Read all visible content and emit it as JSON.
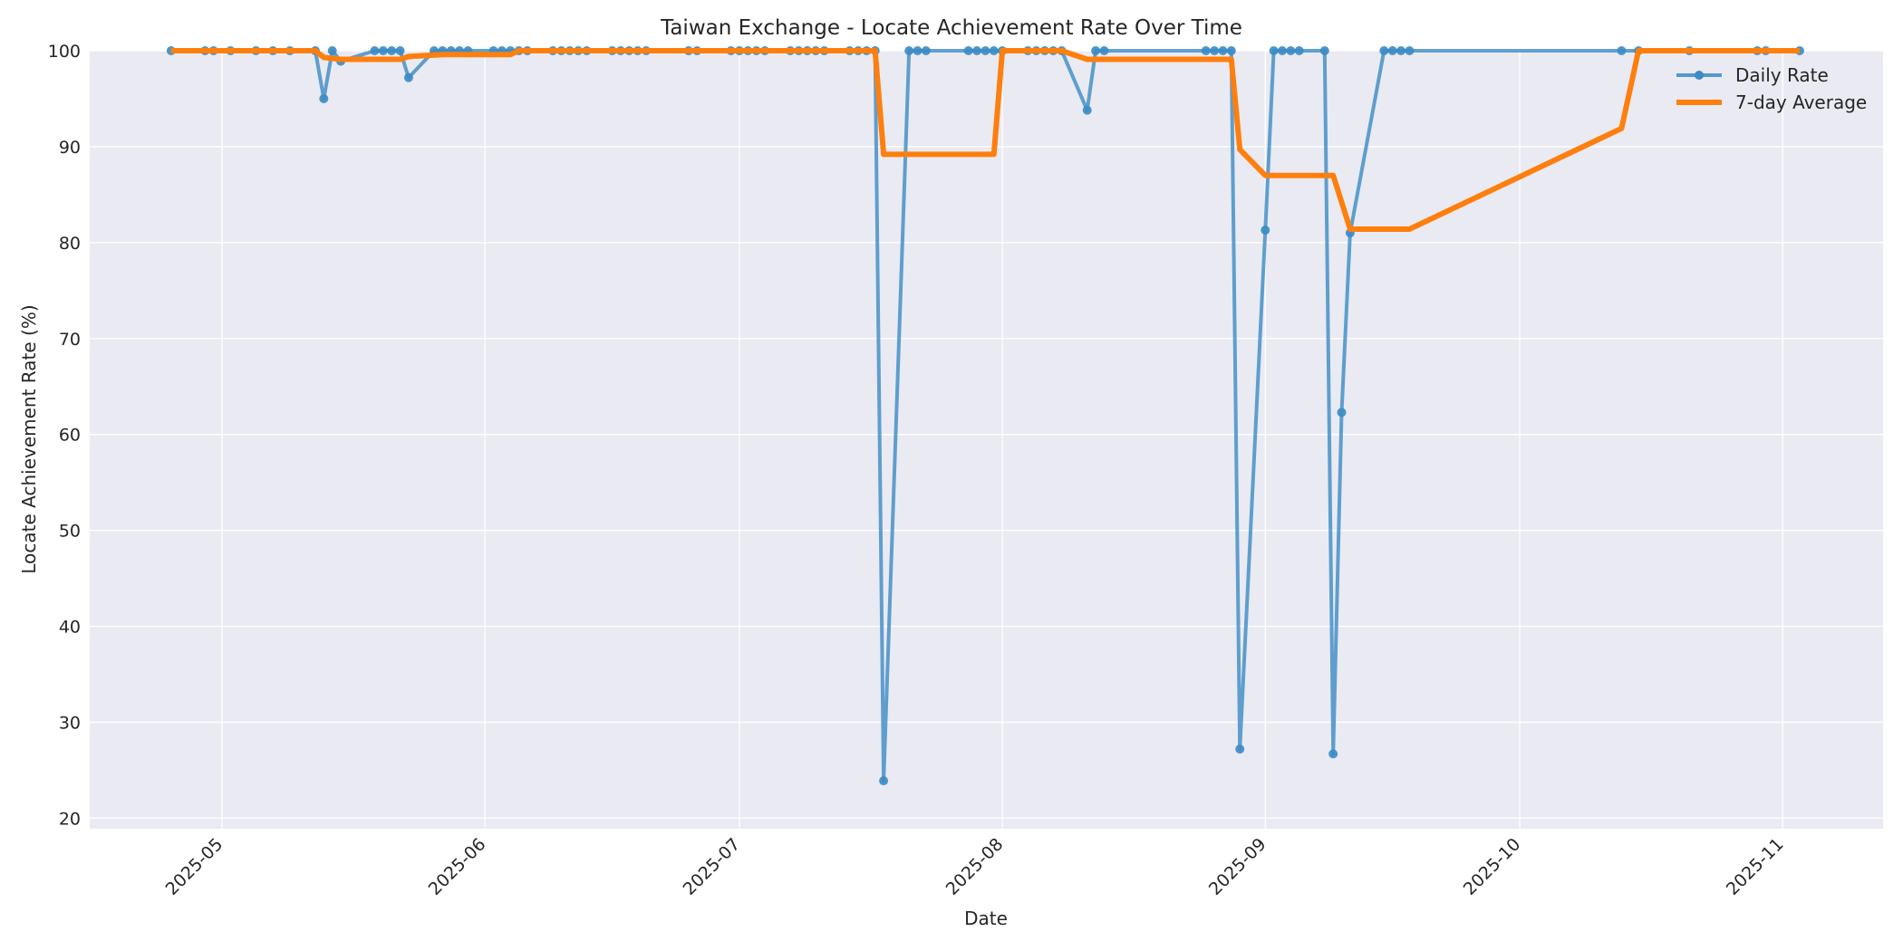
{
  "chart_data": {
    "type": "line",
    "title": "Taiwan Exchange - Locate Achievement Rate Over Time",
    "xlabel": "Date",
    "ylabel": "Locate Achievement Rate (%)",
    "ylim": [
      18.9,
      100
    ],
    "xlim": [
      "2025-04-15",
      "2025-11-12"
    ],
    "yticks": [
      20,
      30,
      40,
      50,
      60,
      70,
      80,
      90,
      100
    ],
    "xticks": [
      "2025-05",
      "2025-06",
      "2025-07",
      "2025-08",
      "2025-09",
      "2025-10",
      "2025-11"
    ],
    "grid": true,
    "legend_position": "upper right",
    "colors": {
      "daily": "#3b8bc4",
      "avg": "#ff7f0e",
      "background": "#eaeaf2",
      "grid": "#ffffff"
    },
    "series": [
      {
        "name": "Daily Rate",
        "style": "line-with-markers",
        "points": [
          [
            "2025-04-25",
            100
          ],
          [
            "2025-04-29",
            100
          ],
          [
            "2025-04-30",
            100
          ],
          [
            "2025-05-02",
            100
          ],
          [
            "2025-05-05",
            100
          ],
          [
            "2025-05-07",
            100
          ],
          [
            "2025-05-09",
            100
          ],
          [
            "2025-05-12",
            100
          ],
          [
            "2025-05-13",
            95.0
          ],
          [
            "2025-05-14",
            100
          ],
          [
            "2025-05-15",
            98.9
          ],
          [
            "2025-05-19",
            100
          ],
          [
            "2025-05-20",
            100
          ],
          [
            "2025-05-21",
            100
          ],
          [
            "2025-05-22",
            100
          ],
          [
            "2025-05-23",
            97.2
          ],
          [
            "2025-05-26",
            100
          ],
          [
            "2025-05-27",
            100
          ],
          [
            "2025-05-28",
            100
          ],
          [
            "2025-05-29",
            100
          ],
          [
            "2025-05-30",
            100
          ],
          [
            "2025-06-02",
            100
          ],
          [
            "2025-06-03",
            100
          ],
          [
            "2025-06-04",
            100
          ],
          [
            "2025-06-05",
            100
          ],
          [
            "2025-06-06",
            100
          ],
          [
            "2025-06-09",
            100
          ],
          [
            "2025-06-10",
            100
          ],
          [
            "2025-06-11",
            100
          ],
          [
            "2025-06-12",
            100
          ],
          [
            "2025-06-13",
            100
          ],
          [
            "2025-06-16",
            100
          ],
          [
            "2025-06-17",
            100
          ],
          [
            "2025-06-18",
            100
          ],
          [
            "2025-06-19",
            100
          ],
          [
            "2025-06-20",
            100
          ],
          [
            "2025-06-25",
            100
          ],
          [
            "2025-06-26",
            100
          ],
          [
            "2025-06-30",
            100
          ],
          [
            "2025-07-01",
            100
          ],
          [
            "2025-07-02",
            100
          ],
          [
            "2025-07-03",
            100
          ],
          [
            "2025-07-04",
            100
          ],
          [
            "2025-07-07",
            100
          ],
          [
            "2025-07-08",
            100
          ],
          [
            "2025-07-09",
            100
          ],
          [
            "2025-07-10",
            100
          ],
          [
            "2025-07-11",
            100
          ],
          [
            "2025-07-14",
            100
          ],
          [
            "2025-07-15",
            100
          ],
          [
            "2025-07-16",
            100
          ],
          [
            "2025-07-17",
            100
          ],
          [
            "2025-07-18",
            23.9
          ],
          [
            "2025-07-21",
            100
          ],
          [
            "2025-07-22",
            100
          ],
          [
            "2025-07-23",
            100
          ],
          [
            "2025-07-28",
            100
          ],
          [
            "2025-07-29",
            100
          ],
          [
            "2025-07-30",
            100
          ],
          [
            "2025-07-31",
            100
          ],
          [
            "2025-08-01",
            100
          ],
          [
            "2025-08-04",
            100
          ],
          [
            "2025-08-05",
            100
          ],
          [
            "2025-08-06",
            100
          ],
          [
            "2025-08-07",
            100
          ],
          [
            "2025-08-08",
            100
          ],
          [
            "2025-08-11",
            93.8
          ],
          [
            "2025-08-12",
            100
          ],
          [
            "2025-08-13",
            100
          ],
          [
            "2025-08-25",
            100
          ],
          [
            "2025-08-26",
            100
          ],
          [
            "2025-08-27",
            100
          ],
          [
            "2025-08-28",
            100
          ],
          [
            "2025-08-29",
            27.2
          ],
          [
            "2025-09-01",
            81.3
          ],
          [
            "2025-09-02",
            100
          ],
          [
            "2025-09-03",
            100
          ],
          [
            "2025-09-04",
            100
          ],
          [
            "2025-09-05",
            100
          ],
          [
            "2025-09-08",
            100
          ],
          [
            "2025-09-09",
            26.7
          ],
          [
            "2025-09-10",
            62.3
          ],
          [
            "2025-09-11",
            81.0
          ],
          [
            "2025-09-15",
            100
          ],
          [
            "2025-09-16",
            100
          ],
          [
            "2025-09-17",
            100
          ],
          [
            "2025-09-18",
            100
          ],
          [
            "2025-10-13",
            100
          ],
          [
            "2025-10-15",
            100
          ],
          [
            "2025-10-21",
            100
          ],
          [
            "2025-10-29",
            100
          ],
          [
            "2025-10-30",
            100
          ],
          [
            "2025-11-03",
            100
          ]
        ]
      },
      {
        "name": "7-day Average",
        "style": "thick-line",
        "points": [
          [
            "2025-04-25",
            100
          ],
          [
            "2025-05-12",
            100
          ],
          [
            "2025-05-13",
            99.3
          ],
          [
            "2025-05-15",
            99.1
          ],
          [
            "2025-05-22",
            99.1
          ],
          [
            "2025-05-23",
            99.4
          ],
          [
            "2025-05-27",
            99.6
          ],
          [
            "2025-06-04",
            99.6
          ],
          [
            "2025-06-05",
            100
          ],
          [
            "2025-07-17",
            100
          ],
          [
            "2025-07-18",
            89.2
          ],
          [
            "2025-07-31",
            89.2
          ],
          [
            "2025-08-01",
            100
          ],
          [
            "2025-08-08",
            100
          ],
          [
            "2025-08-11",
            99.1
          ],
          [
            "2025-08-28",
            99.1
          ],
          [
            "2025-08-29",
            89.7
          ],
          [
            "2025-09-01",
            87.0
          ],
          [
            "2025-09-09",
            87.0
          ],
          [
            "2025-09-11",
            81.4
          ],
          [
            "2025-09-18",
            81.4
          ],
          [
            "2025-10-13",
            91.9
          ],
          [
            "2025-10-15",
            100
          ],
          [
            "2025-11-03",
            100
          ]
        ]
      }
    ],
    "legend": [
      {
        "label": "Daily Rate",
        "marker": "line-dot"
      },
      {
        "label": "7-day Average",
        "marker": "thick-line"
      }
    ]
  }
}
